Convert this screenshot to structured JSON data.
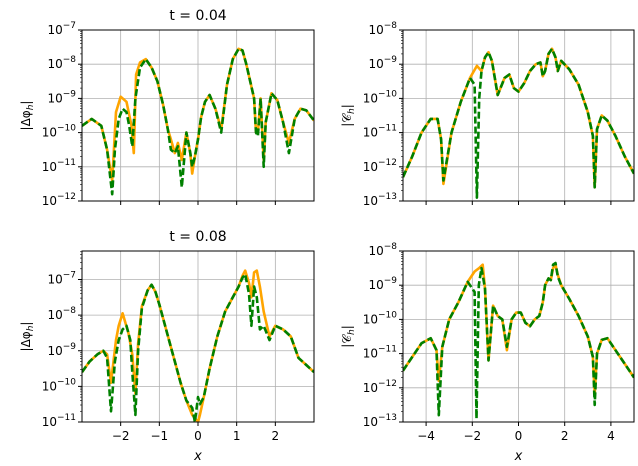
{
  "colors": {
    "solid": "#ffa500",
    "dashed": "#008000",
    "grid": "#b0b0b0"
  },
  "chart_data": [
    {
      "type": "line",
      "title": "t = 0.04",
      "ylabel": "|Δφ_h|",
      "xlabel": "",
      "yscale": "log",
      "xlim": [
        -3,
        3
      ],
      "ylim_exp": [
        -12,
        -7
      ],
      "grid": true,
      "xticks": [
        -2,
        -1,
        0,
        1,
        2
      ],
      "xtick_labels": [
        "",
        "",
        "",
        "",
        ""
      ],
      "yticks_exp": [
        -12,
        -11,
        -10,
        -9,
        -8,
        -7
      ],
      "ytick_labels": [
        "10−12",
        "10−11",
        "10−10",
        "10−9",
        "10−8",
        "10−7"
      ],
      "series": [
        {
          "style": "solid",
          "x": [
            -3,
            -2.75,
            -2.5,
            -2.35,
            -2.22,
            -2.12,
            -2.0,
            -1.85,
            -1.72,
            -1.66,
            -1.6,
            -1.5,
            -1.35,
            -1.2,
            -1.05,
            -0.9,
            -0.78,
            -0.7,
            -0.6,
            -0.52,
            -0.42,
            -0.3,
            -0.2,
            -0.15,
            -0.08,
            0.0,
            0.08,
            0.18,
            0.3,
            0.45,
            0.6,
            0.75,
            0.9,
            1.05,
            1.15,
            1.25,
            1.35,
            1.45,
            1.5,
            1.55,
            1.62,
            1.7,
            1.75,
            1.9,
            2.05,
            2.2,
            2.35,
            2.5,
            2.65,
            2.8,
            3.0
          ],
          "logy": [
            -9.8,
            -9.6,
            -9.8,
            -10.5,
            -11.4,
            -9.4,
            -8.95,
            -9.1,
            -9.8,
            -10.6,
            -8.3,
            -7.95,
            -7.85,
            -8.1,
            -8.5,
            -9.2,
            -9.9,
            -10.2,
            -10.6,
            -10.3,
            -10.8,
            -10.0,
            -10.6,
            -11.2,
            -10.7,
            -10.2,
            -9.55,
            -9.1,
            -8.9,
            -9.3,
            -9.9,
            -8.6,
            -7.85,
            -7.55,
            -7.6,
            -8.0,
            -8.5,
            -9.0,
            -10.0,
            -10.0,
            -9.0,
            -10.8,
            -9.7,
            -8.85,
            -9.05,
            -9.7,
            -10.3,
            -9.6,
            -9.3,
            -9.35,
            -9.65
          ]
        },
        {
          "style": "dashed",
          "x": [
            -3,
            -2.75,
            -2.5,
            -2.35,
            -2.22,
            -2.15,
            -2.05,
            -1.95,
            -1.85,
            -1.78,
            -1.7,
            -1.62,
            -1.5,
            -1.35,
            -1.2,
            -1.05,
            -0.9,
            -0.78,
            -0.7,
            -0.6,
            -0.52,
            -0.42,
            -0.3,
            -0.2,
            -0.15,
            -0.08,
            0.0,
            0.08,
            0.18,
            0.3,
            0.45,
            0.6,
            0.75,
            0.9,
            1.05,
            1.15,
            1.25,
            1.35,
            1.45,
            1.5,
            1.55,
            1.62,
            1.7,
            1.75,
            1.9,
            2.05,
            2.2,
            2.35,
            2.5,
            2.65,
            2.8,
            3.0
          ],
          "logy": [
            -9.8,
            -9.6,
            -9.8,
            -10.5,
            -11.8,
            -10.5,
            -9.6,
            -9.3,
            -9.4,
            -9.8,
            -10.4,
            -9.0,
            -8.1,
            -7.85,
            -8.1,
            -8.5,
            -9.2,
            -9.9,
            -10.5,
            -10.6,
            -10.4,
            -11.6,
            -10.0,
            -10.6,
            -11.0,
            -10.7,
            -10.2,
            -9.55,
            -9.1,
            -8.9,
            -9.3,
            -10.0,
            -8.6,
            -7.85,
            -7.55,
            -7.6,
            -8.0,
            -8.5,
            -9.0,
            -10.0,
            -10.1,
            -9.0,
            -11.0,
            -9.7,
            -8.85,
            -9.05,
            -9.7,
            -10.6,
            -9.6,
            -9.3,
            -9.35,
            -9.65
          ]
        }
      ]
    },
    {
      "type": "line",
      "title": "",
      "ylabel": "|𝒞_h|",
      "xlabel": "",
      "yscale": "log",
      "xlim": [
        -5,
        5
      ],
      "ylim_exp": [
        -13,
        -8
      ],
      "grid": true,
      "xticks": [
        -4,
        -2,
        0,
        2,
        4
      ],
      "xtick_labels": [
        "",
        "",
        "",
        "",
        ""
      ],
      "yticks_exp": [
        -13,
        -12,
        -11,
        -10,
        -9,
        -8
      ],
      "ytick_labels": [
        "10−13",
        "10−12",
        "10−11",
        "10−10",
        "10−9",
        "10−8"
      ],
      "series": [
        {
          "style": "solid",
          "x": [
            -5,
            -4.6,
            -4.2,
            -3.8,
            -3.5,
            -3.35,
            -3.25,
            -2.9,
            -2.5,
            -2.1,
            -1.8,
            -1.6,
            -1.45,
            -1.3,
            -1.15,
            -0.9,
            -0.6,
            -0.4,
            -0.2,
            0,
            0.25,
            0.5,
            0.75,
            0.95,
            1.05,
            1.15,
            1.3,
            1.45,
            1.6,
            1.7,
            1.85,
            2.2,
            2.6,
            3.0,
            3.22,
            3.3,
            3.4,
            3.6,
            3.85,
            4.2,
            4.6,
            5.0
          ],
          "logy": [
            -12.3,
            -11.7,
            -11.0,
            -10.6,
            -10.6,
            -11.2,
            -12.5,
            -11.0,
            -10.1,
            -9.4,
            -9.05,
            -9.2,
            -8.8,
            -8.65,
            -8.9,
            -9.9,
            -9.4,
            -9.3,
            -9.7,
            -9.8,
            -9.55,
            -9.2,
            -9.0,
            -8.95,
            -9.35,
            -9.2,
            -8.7,
            -8.55,
            -8.8,
            -9.2,
            -8.9,
            -9.15,
            -9.6,
            -10.4,
            -11.1,
            -12.6,
            -10.9,
            -10.5,
            -10.65,
            -11.1,
            -11.7,
            -12.2
          ]
        },
        {
          "style": "dashed",
          "x": [
            -5,
            -4.6,
            -4.2,
            -3.8,
            -3.5,
            -3.35,
            -3.25,
            -2.9,
            -2.5,
            -2.1,
            -1.9,
            -1.8,
            -1.7,
            -1.6,
            -1.45,
            -1.3,
            -1.15,
            -0.9,
            -0.6,
            -0.4,
            -0.2,
            0,
            0.25,
            0.5,
            0.75,
            0.95,
            1.05,
            1.15,
            1.3,
            1.45,
            1.6,
            1.7,
            1.85,
            2.2,
            2.6,
            3.0,
            3.22,
            3.3,
            3.4,
            3.6,
            3.85,
            4.2,
            4.6,
            5.0
          ],
          "logy": [
            -12.3,
            -11.7,
            -11.0,
            -10.6,
            -10.6,
            -11.2,
            -12.4,
            -11.0,
            -10.1,
            -9.4,
            -9.6,
            -12.9,
            -10.0,
            -9.2,
            -8.8,
            -8.65,
            -8.9,
            -9.9,
            -9.4,
            -9.3,
            -9.7,
            -9.8,
            -9.55,
            -9.2,
            -9.0,
            -8.95,
            -9.35,
            -9.2,
            -8.7,
            -8.55,
            -8.8,
            -9.2,
            -8.9,
            -9.15,
            -9.6,
            -10.4,
            -11.1,
            -12.6,
            -10.9,
            -10.5,
            -10.65,
            -11.1,
            -11.7,
            -12.2
          ]
        }
      ]
    },
    {
      "type": "line",
      "title": "t = 0.08",
      "ylabel": "|Δφ_h|",
      "xlabel": "x",
      "yscale": "log",
      "xlim": [
        -3,
        3
      ],
      "ylim_exp": [
        -11,
        -6.2
      ],
      "grid": true,
      "xticks": [
        -2,
        -1,
        0,
        1,
        2
      ],
      "xtick_labels": [
        "−2",
        "−1",
        "0",
        "1",
        "2"
      ],
      "yticks_exp": [
        -11,
        -10,
        -9,
        -8,
        -7
      ],
      "ytick_labels": [
        "10−11",
        "10−10",
        "10−9",
        "10−8",
        "10−7"
      ],
      "series": [
        {
          "style": "solid",
          "x": [
            -3,
            -2.8,
            -2.6,
            -2.45,
            -2.35,
            -2.25,
            -2.12,
            -2.05,
            -1.95,
            -1.8,
            -1.7,
            -1.62,
            -1.55,
            -1.45,
            -1.3,
            -1.2,
            -1.1,
            -1.0,
            -0.9,
            -0.75,
            -0.6,
            -0.45,
            -0.3,
            -0.15,
            0.0,
            0.05,
            0.15,
            0.3,
            0.5,
            0.7,
            0.9,
            1.05,
            1.15,
            1.22,
            1.32,
            1.38,
            1.45,
            1.52,
            1.6,
            1.7,
            1.85,
            2.0,
            2.2,
            2.4,
            2.6,
            2.8,
            3.0
          ],
          "logy": [
            -9.6,
            -9.3,
            -9.1,
            -9.0,
            -9.1,
            -9.9,
            -8.7,
            -8.3,
            -7.95,
            -8.5,
            -9.1,
            -10.2,
            -8.8,
            -7.75,
            -7.3,
            -7.15,
            -7.35,
            -7.7,
            -8.1,
            -8.7,
            -9.3,
            -9.9,
            -10.4,
            -10.8,
            -11.0,
            -10.8,
            -10.3,
            -9.5,
            -8.6,
            -7.9,
            -7.5,
            -7.2,
            -6.9,
            -6.75,
            -7.1,
            -7.5,
            -6.8,
            -6.75,
            -7.2,
            -7.9,
            -8.6,
            -8.3,
            -8.4,
            -8.6,
            -9.2,
            -9.4,
            -9.6
          ]
        },
        {
          "style": "dashed",
          "x": [
            -3,
            -2.8,
            -2.6,
            -2.45,
            -2.35,
            -2.25,
            -2.15,
            -2.05,
            -1.95,
            -1.85,
            -1.75,
            -1.7,
            -1.62,
            -1.55,
            -1.45,
            -1.3,
            -1.2,
            -1.1,
            -1.0,
            -0.9,
            -0.75,
            -0.6,
            -0.45,
            -0.3,
            -0.15,
            -0.08,
            0.0,
            0.05,
            0.15,
            0.3,
            0.5,
            0.7,
            0.9,
            1.05,
            1.15,
            1.22,
            1.32,
            1.38,
            1.45,
            1.52,
            1.6,
            1.7,
            1.85,
            2.0,
            2.2,
            2.4,
            2.6,
            2.8,
            3.0
          ],
          "logy": [
            -9.6,
            -9.3,
            -9.1,
            -9.0,
            -9.2,
            -10.7,
            -9.3,
            -8.7,
            -8.4,
            -8.3,
            -8.7,
            -9.6,
            -10.8,
            -9.0,
            -7.8,
            -7.3,
            -7.15,
            -7.35,
            -7.7,
            -8.1,
            -8.7,
            -9.3,
            -9.9,
            -10.4,
            -10.6,
            -11.0,
            -10.3,
            -10.5,
            -10.3,
            -9.5,
            -8.6,
            -7.9,
            -7.5,
            -7.2,
            -6.95,
            -6.85,
            -7.4,
            -8.3,
            -7.2,
            -7.5,
            -8.4,
            -8.3,
            -8.7,
            -8.3,
            -8.4,
            -8.6,
            -9.2,
            -9.4,
            -9.6
          ]
        }
      ]
    },
    {
      "type": "line",
      "title": "",
      "ylabel": "|𝒞_h|",
      "xlabel": "x",
      "yscale": "log",
      "xlim": [
        -5,
        5
      ],
      "ylim_exp": [
        -13,
        -8
      ],
      "grid": true,
      "xticks": [
        -4,
        -2,
        0,
        2,
        4
      ],
      "xtick_labels": [
        "−4",
        "−2",
        "0",
        "2",
        "4"
      ],
      "yticks_exp": [
        -13,
        -12,
        -11,
        -10,
        -9,
        -8
      ],
      "ytick_labels": [
        "10−13",
        "10−12",
        "10−11",
        "10−10",
        "10−9",
        "10−8"
      ],
      "series": [
        {
          "style": "solid",
          "x": [
            -5,
            -4.6,
            -4.2,
            -3.8,
            -3.55,
            -3.45,
            -3.3,
            -3.0,
            -2.6,
            -2.2,
            -1.9,
            -1.7,
            -1.55,
            -1.45,
            -1.3,
            -1.1,
            -0.9,
            -0.7,
            -0.5,
            -0.3,
            -0.1,
            0.1,
            0.3,
            0.5,
            0.7,
            0.9,
            1.05,
            1.15,
            1.3,
            1.4,
            1.5,
            1.6,
            1.7,
            1.85,
            2.2,
            2.6,
            3.0,
            3.22,
            3.3,
            3.4,
            3.6,
            3.85,
            4.2,
            4.6,
            5.0
          ],
          "logy": [
            -11.5,
            -11.1,
            -10.7,
            -10.55,
            -10.9,
            -11.8,
            -10.8,
            -10.0,
            -9.5,
            -8.9,
            -8.6,
            -8.5,
            -8.4,
            -9.1,
            -11.2,
            -9.6,
            -9.9,
            -10.0,
            -10.9,
            -10.0,
            -9.8,
            -9.8,
            -10.1,
            -10.2,
            -10.0,
            -9.9,
            -9.5,
            -9.0,
            -8.8,
            -8.85,
            -8.5,
            -8.4,
            -8.7,
            -9.0,
            -9.4,
            -9.9,
            -10.5,
            -11.1,
            -12.2,
            -11.0,
            -10.6,
            -10.55,
            -10.9,
            -11.3,
            -11.7
          ]
        },
        {
          "style": "dashed",
          "x": [
            -5,
            -4.6,
            -4.2,
            -3.8,
            -3.55,
            -3.45,
            -3.3,
            -3.0,
            -2.6,
            -2.2,
            -1.9,
            -1.82,
            -1.72,
            -1.6,
            -1.45,
            -1.3,
            -1.1,
            -0.9,
            -0.7,
            -0.5,
            -0.3,
            -0.1,
            0.1,
            0.3,
            0.5,
            0.7,
            0.9,
            1.05,
            1.15,
            1.3,
            1.4,
            1.5,
            1.6,
            1.7,
            1.85,
            2.2,
            2.6,
            3.0,
            3.22,
            3.3,
            3.4,
            3.6,
            3.85,
            4.2,
            4.6,
            5.0
          ],
          "logy": [
            -11.5,
            -11.1,
            -10.7,
            -10.55,
            -10.9,
            -12.8,
            -10.8,
            -10.0,
            -9.5,
            -8.9,
            -9.2,
            -12.9,
            -9.0,
            -8.5,
            -9.1,
            -11.2,
            -9.6,
            -9.9,
            -10.0,
            -10.8,
            -10.0,
            -9.8,
            -9.8,
            -10.1,
            -10.2,
            -10.0,
            -9.9,
            -9.5,
            -9.0,
            -8.8,
            -8.85,
            -8.4,
            -8.35,
            -8.75,
            -9.0,
            -9.4,
            -9.9,
            -10.5,
            -11.1,
            -12.5,
            -11.0,
            -10.6,
            -10.55,
            -10.9,
            -11.3,
            -11.7
          ]
        }
      ]
    }
  ]
}
